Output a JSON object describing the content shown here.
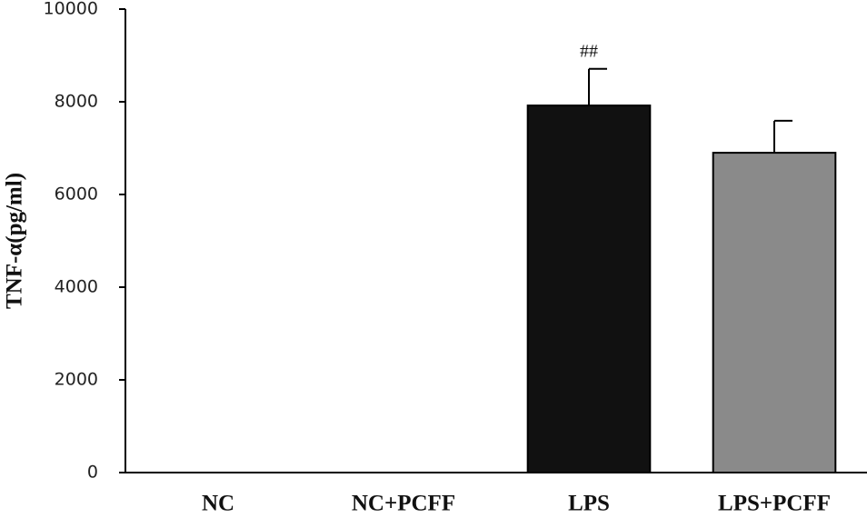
{
  "chart_data": {
    "type": "bar",
    "y_label": "TNF-α(pg/ml)",
    "categories": [
      "NC",
      "NC+PCFF",
      "LPS",
      "LPS+PCFF"
    ],
    "values": [
      0,
      0,
      7920,
      6900
    ],
    "errors": [
      null,
      null,
      790,
      690
    ],
    "annotations": [
      null,
      null,
      "##",
      null
    ],
    "colors": [
      "#111111",
      "#111111",
      "#111111",
      "#8a8a8a"
    ],
    "ylim": [
      0,
      10000
    ],
    "yticks": [
      0,
      2000,
      4000,
      6000,
      8000,
      10000
    ]
  }
}
